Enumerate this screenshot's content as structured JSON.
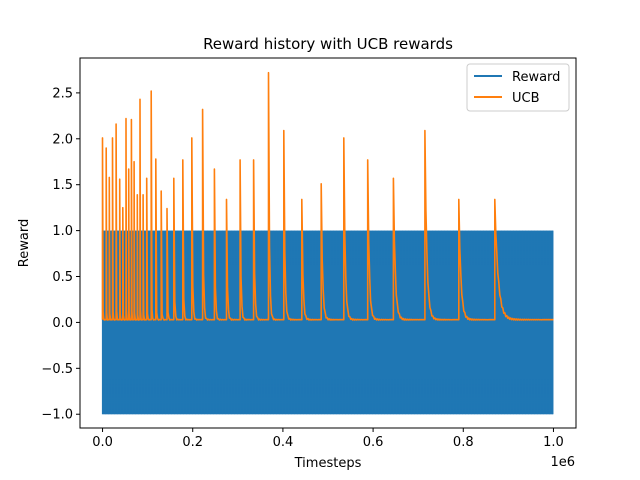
{
  "chart_data": {
    "type": "line",
    "title": "Reward history with UCB rewards",
    "xlabel": "Timesteps",
    "ylabel": "Reward",
    "x_offset_label": "1e6",
    "xlim": [
      -0.05,
      1.05
    ],
    "ylim": [
      -1.15,
      2.88
    ],
    "x_ticks": [
      0.0,
      0.2,
      0.4,
      0.6,
      0.8,
      1.0
    ],
    "x_tick_labels": [
      "0.0",
      "0.2",
      "0.4",
      "0.6",
      "0.8",
      "1.0"
    ],
    "y_ticks": [
      -1.0,
      -0.5,
      0.0,
      0.5,
      1.0,
      1.5,
      2.0,
      2.5
    ],
    "y_tick_labels": [
      "−1.0",
      "−0.5",
      "0.0",
      "0.5",
      "1.0",
      "1.5",
      "2.0",
      "2.5"
    ],
    "legend_position": "top-right",
    "series": [
      {
        "name": "Reward",
        "color": "#1f77b4",
        "style": "dense oscillation between -1 and 1",
        "x_range": [
          0.0,
          1.0
        ],
        "min": -1.0,
        "max": 1.0
      },
      {
        "name": "UCB",
        "color": "#ff7f0e",
        "style": "spikes decaying toward baseline",
        "baseline": 0.03,
        "spikes": [
          {
            "x": 0.0,
            "y": 2.01
          },
          {
            "x": 0.008,
            "y": 1.9
          },
          {
            "x": 0.015,
            "y": 1.58
          },
          {
            "x": 0.022,
            "y": 2.01
          },
          {
            "x": 0.03,
            "y": 2.16
          },
          {
            "x": 0.038,
            "y": 1.56
          },
          {
            "x": 0.045,
            "y": 1.25
          },
          {
            "x": 0.052,
            "y": 2.22
          },
          {
            "x": 0.058,
            "y": 1.67
          },
          {
            "x": 0.064,
            "y": 2.21
          },
          {
            "x": 0.07,
            "y": 1.75
          },
          {
            "x": 0.077,
            "y": 1.39
          },
          {
            "x": 0.083,
            "y": 2.43
          },
          {
            "x": 0.09,
            "y": 1.39
          },
          {
            "x": 0.098,
            "y": 1.57
          },
          {
            "x": 0.108,
            "y": 2.52
          },
          {
            "x": 0.118,
            "y": 1.78
          },
          {
            "x": 0.13,
            "y": 1.43
          },
          {
            "x": 0.143,
            "y": 1.24
          },
          {
            "x": 0.158,
            "y": 1.57
          },
          {
            "x": 0.178,
            "y": 1.77
          },
          {
            "x": 0.198,
            "y": 2.01
          },
          {
            "x": 0.222,
            "y": 2.32
          },
          {
            "x": 0.248,
            "y": 1.67
          },
          {
            "x": 0.275,
            "y": 1.34
          },
          {
            "x": 0.305,
            "y": 1.77
          },
          {
            "x": 0.335,
            "y": 1.77
          },
          {
            "x": 0.368,
            "y": 2.72
          },
          {
            "x": 0.402,
            "y": 2.09
          },
          {
            "x": 0.442,
            "y": 1.34
          },
          {
            "x": 0.485,
            "y": 1.51
          },
          {
            "x": 0.535,
            "y": 2.01
          },
          {
            "x": 0.588,
            "y": 1.77
          },
          {
            "x": 0.645,
            "y": 1.57
          },
          {
            "x": 0.715,
            "y": 2.09
          },
          {
            "x": 0.79,
            "y": 1.34
          },
          {
            "x": 0.87,
            "y": 1.34
          }
        ]
      }
    ]
  }
}
